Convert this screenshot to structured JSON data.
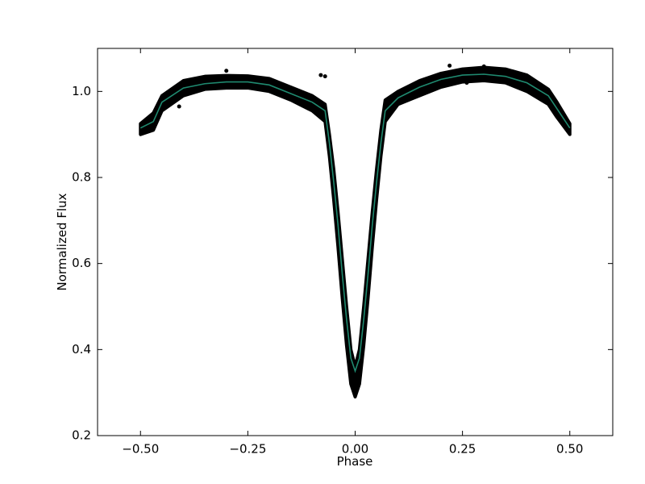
{
  "chart_data": {
    "type": "scatter",
    "xlabel": "Phase",
    "ylabel": "Normalized Flux",
    "xlim": [
      -0.6,
      0.6
    ],
    "ylim": [
      0.2,
      1.1
    ],
    "xticks": [
      {
        "value": -0.5,
        "label": "−0.50"
      },
      {
        "value": -0.25,
        "label": "−0.25"
      },
      {
        "value": 0,
        "label": "0.00"
      },
      {
        "value": 0.25,
        "label": "0.25"
      },
      {
        "value": 0.5,
        "label": "0.50"
      }
    ],
    "yticks": [
      0.2,
      0.4,
      0.6,
      0.8,
      {
        "value": 1,
        "label": "1.0"
      }
    ],
    "x": [
      -0.5,
      -0.47,
      -0.45,
      -0.4,
      -0.35,
      -0.3,
      -0.25,
      -0.2,
      -0.15,
      -0.1,
      -0.07,
      -0.06,
      -0.05,
      -0.04,
      -0.03,
      -0.02,
      -0.01,
      0,
      0.01,
      0.02,
      0.03,
      0.04,
      0.05,
      0.06,
      0.07,
      0.1,
      0.15,
      0.2,
      0.25,
      0.3,
      0.35,
      0.4,
      0.45,
      0.47,
      0.5
    ],
    "series": [
      {
        "style": "band",
        "color": "#000000",
        "upper": [
          0.925,
          0.95,
          0.99,
          1.025,
          1.035,
          1.037,
          1.036,
          1.03,
          1.01,
          0.99,
          0.97,
          0.9,
          0.82,
          0.72,
          0.61,
          0.5,
          0.4,
          0.36,
          0.4,
          0.5,
          0.61,
          0.72,
          0.82,
          0.91,
          0.98,
          1.0,
          1.025,
          1.042,
          1.052,
          1.056,
          1.052,
          1.038,
          1.005,
          0.975,
          0.925
        ],
        "lower": [
          0.9,
          0.91,
          0.955,
          0.99,
          1.005,
          1.008,
          1.008,
          1.0,
          0.98,
          0.955,
          0.93,
          0.85,
          0.75,
          0.64,
          0.52,
          0.41,
          0.32,
          0.29,
          0.32,
          0.41,
          0.52,
          0.64,
          0.75,
          0.85,
          0.93,
          0.97,
          0.99,
          1.01,
          1.022,
          1.025,
          1.02,
          1.0,
          0.97,
          0.94,
          0.9
        ]
      },
      {
        "style": "line",
        "color": "#1f8a70",
        "values": [
          0.915,
          0.93,
          0.975,
          1.008,
          1.018,
          1.022,
          1.022,
          1.015,
          0.995,
          0.975,
          0.955,
          0.88,
          0.79,
          0.69,
          0.575,
          0.47,
          0.38,
          0.35,
          0.38,
          0.47,
          0.575,
          0.69,
          0.79,
          0.88,
          0.955,
          0.985,
          1.01,
          1.028,
          1.038,
          1.04,
          1.035,
          1.02,
          0.99,
          0.96,
          0.915
        ]
      }
    ],
    "outliers": {
      "color": "#000000",
      "x": [
        -0.41,
        -0.3,
        -0.08,
        -0.07,
        0.22,
        0.26,
        0.3
      ],
      "values": [
        0.965,
        1.048,
        1.038,
        1.035,
        1.06,
        1.02,
        1.058
      ]
    }
  }
}
